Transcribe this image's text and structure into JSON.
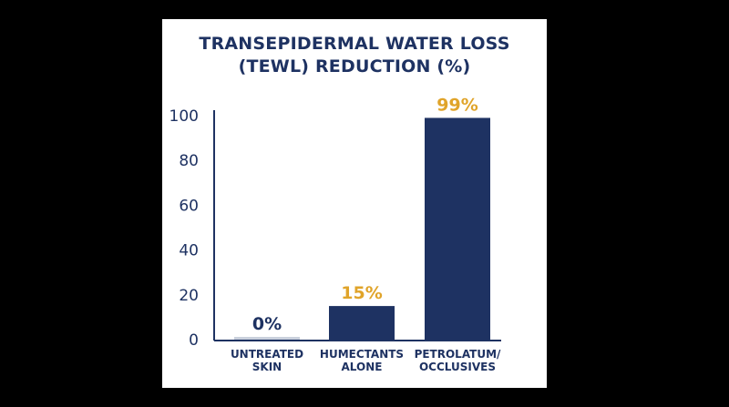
{
  "chart_data": {
    "type": "bar",
    "title_lines": [
      "TRANSEPIDERMAL WATER LOSS",
      "(TEWL) REDUCTION (%)"
    ],
    "categories": [
      [
        "UNTREATED",
        "SKIN"
      ],
      [
        "HUMECTANTS",
        "ALONE"
      ],
      [
        "PETROLATUM/",
        "OCCLUSIVES"
      ]
    ],
    "values": [
      0,
      15,
      99
    ],
    "data_labels": [
      "0%",
      "15%",
      "99%"
    ],
    "bar_colors": [
      "#c9d0dc",
      "#1e3262",
      "#1e3262"
    ],
    "data_label_colors": [
      "#1e3262",
      "#e0a42a",
      "#e0a42a"
    ],
    "y_ticks": [
      0,
      20,
      40,
      60,
      80,
      100
    ],
    "ylim": [
      0,
      100
    ],
    "grid": false,
    "colors": {
      "text": "#1e3262",
      "axis": "#1e3262",
      "accent": "#e0a42a"
    }
  }
}
